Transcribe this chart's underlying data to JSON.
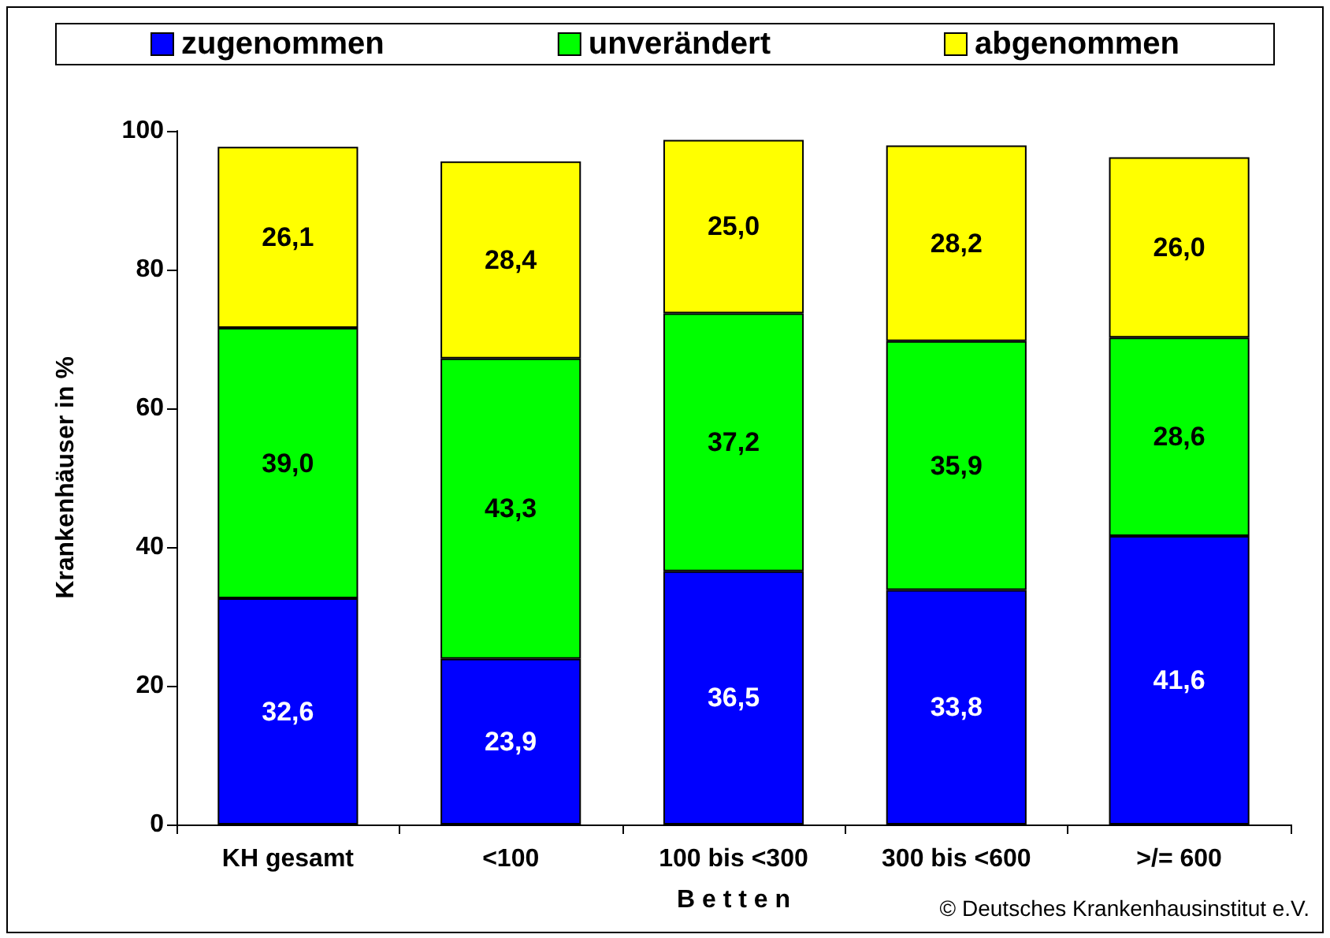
{
  "chart_data": {
    "type": "bar",
    "stacked": true,
    "ylabel": "Krankenhäuser in %",
    "xlabel": "B e t t e n",
    "categories": [
      "KH gesamt",
      "<100",
      "100 bis <300",
      "300 bis <600",
      ">/= 600"
    ],
    "series": [
      {
        "name": "zugenommen",
        "color": "#0000ff",
        "values": [
          32.6,
          23.9,
          36.5,
          33.8,
          41.6
        ],
        "value_labels": [
          "32,6",
          "23,9",
          "36,5",
          "33,8",
          "41,6"
        ]
      },
      {
        "name": "unverändert",
        "color": "#00ff00",
        "values": [
          39.0,
          43.3,
          37.2,
          35.9,
          28.6
        ],
        "value_labels": [
          "39,0",
          "43,3",
          "37,2",
          "35,9",
          "28,6"
        ]
      },
      {
        "name": "abgenommen",
        "color": "#ffff00",
        "values": [
          26.1,
          28.4,
          25.0,
          28.2,
          26.0
        ],
        "value_labels": [
          "26,1",
          "28,4",
          "25,0",
          "28,2",
          "26,0"
        ]
      }
    ],
    "ylim": [
      0,
      100
    ],
    "yticks": [
      0,
      20,
      40,
      60,
      80,
      100
    ],
    "grid": false,
    "legend": "top",
    "annotations": [
      "© Deutsches Krankenhausinstitut e.V."
    ]
  }
}
